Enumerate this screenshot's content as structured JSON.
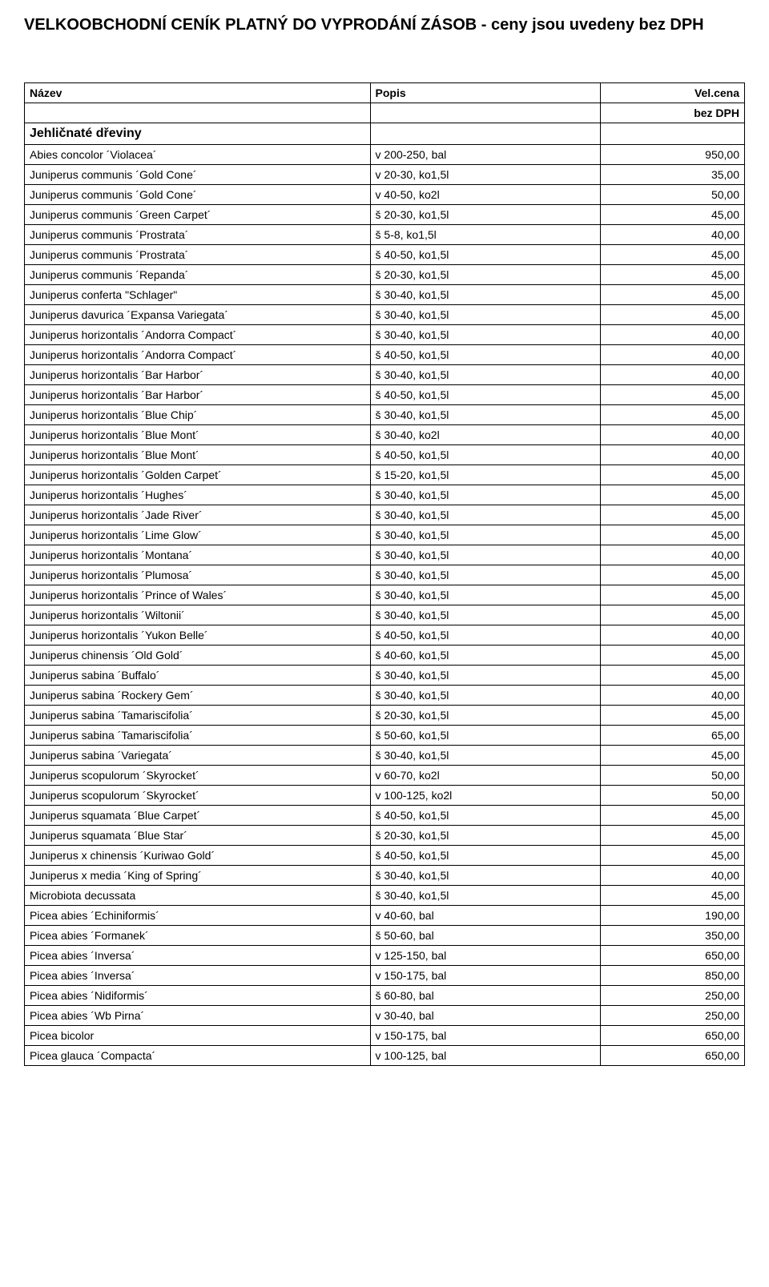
{
  "title": "VELKOOBCHODNÍ CENÍK PLATNÝ DO VYPRODÁNÍ ZÁSOB - ceny jsou uvedeny bez DPH",
  "headers": {
    "name": "Název",
    "desc": "Popis",
    "price": "Vel.cena"
  },
  "subhead": "bez DPH",
  "section": "Jehličnaté dřeviny",
  "rows": [
    {
      "name": "Abies concolor ´Violacea´",
      "desc": "v 200-250, bal",
      "price": "950,00"
    },
    {
      "name": "Juniperus communis ´Gold Cone´",
      "desc": "v 20-30, ko1,5l",
      "price": "35,00"
    },
    {
      "name": "Juniperus communis ´Gold Cone´",
      "desc": "v 40-50, ko2l",
      "price": "50,00"
    },
    {
      "name": "Juniperus communis ´Green Carpet´",
      "desc": "š 20-30, ko1,5l",
      "price": "45,00"
    },
    {
      "name": "Juniperus communis ´Prostrata´",
      "desc": "š 5-8, ko1,5l",
      "price": "40,00"
    },
    {
      "name": "Juniperus communis ´Prostrata´",
      "desc": "š 40-50, ko1,5l",
      "price": "45,00"
    },
    {
      "name": "Juniperus communis ´Repanda´",
      "desc": "š 20-30, ko1,5l",
      "price": "45,00"
    },
    {
      "name": "Juniperus conferta \"Schlager\"",
      "desc": "š 30-40, ko1,5l",
      "price": "45,00"
    },
    {
      "name": "Juniperus davurica ´Expansa Variegata´",
      "desc": "š 30-40, ko1,5l",
      "price": "45,00"
    },
    {
      "name": "Juniperus horizontalis ´Andorra Compact´",
      "desc": "š 30-40, ko1,5l",
      "price": "40,00"
    },
    {
      "name": "Juniperus horizontalis ´Andorra Compact´",
      "desc": "š 40-50, ko1,5l",
      "price": "40,00"
    },
    {
      "name": "Juniperus horizontalis ´Bar Harbor´",
      "desc": "š 30-40, ko1,5l",
      "price": "40,00"
    },
    {
      "name": "Juniperus horizontalis ´Bar Harbor´",
      "desc": "š 40-50, ko1,5l",
      "price": "45,00"
    },
    {
      "name": "Juniperus horizontalis ´Blue Chip´",
      "desc": "š 30-40, ko1,5l",
      "price": "45,00"
    },
    {
      "name": "Juniperus horizontalis ´Blue Mont´",
      "desc": "š 30-40, ko2l",
      "price": "40,00"
    },
    {
      "name": "Juniperus horizontalis ´Blue Mont´",
      "desc": "š 40-50, ko1,5l",
      "price": "40,00"
    },
    {
      "name": "Juniperus horizontalis ´Golden Carpet´",
      "desc": "š 15-20, ko1,5l",
      "price": "45,00"
    },
    {
      "name": "Juniperus horizontalis ´Hughes´",
      "desc": "š 30-40, ko1,5l",
      "price": "45,00"
    },
    {
      "name": "Juniperus horizontalis ´Jade River´",
      "desc": "š 30-40, ko1,5l",
      "price": "45,00"
    },
    {
      "name": "Juniperus horizontalis ´Lime Glow´",
      "desc": "š 30-40, ko1,5l",
      "price": "45,00"
    },
    {
      "name": "Juniperus horizontalis ´Montana´",
      "desc": "š 30-40, ko1,5l",
      "price": "40,00"
    },
    {
      "name": "Juniperus horizontalis ´Plumosa´",
      "desc": "š 30-40, ko1,5l",
      "price": "45,00"
    },
    {
      "name": "Juniperus horizontalis ´Prince of Wales´",
      "desc": "š 30-40, ko1,5l",
      "price": "45,00"
    },
    {
      "name": "Juniperus horizontalis ´Wiltonii´",
      "desc": "š 30-40, ko1,5l",
      "price": "45,00"
    },
    {
      "name": "Juniperus horizontalis ´Yukon Belle´",
      "desc": "š 40-50, ko1,5l",
      "price": "40,00"
    },
    {
      "name": "Juniperus chinensis ´Old Gold´",
      "desc": "š 40-60, ko1,5l",
      "price": "45,00"
    },
    {
      "name": "Juniperus sabina ´Buffalo´",
      "desc": "š 30-40, ko1,5l",
      "price": "45,00"
    },
    {
      "name": "Juniperus sabina ´Rockery Gem´",
      "desc": "š 30-40, ko1,5l",
      "price": "40,00"
    },
    {
      "name": "Juniperus sabina ´Tamariscifolia´",
      "desc": "š 20-30, ko1,5l",
      "price": "45,00"
    },
    {
      "name": "Juniperus sabina ´Tamariscifolia´",
      "desc": "š 50-60, ko1,5l",
      "price": "65,00"
    },
    {
      "name": "Juniperus sabina ´Variegata´",
      "desc": "š 30-40, ko1,5l",
      "price": "45,00"
    },
    {
      "name": "Juniperus scopulorum ´Skyrocket´",
      "desc": "v 60-70, ko2l",
      "price": "50,00"
    },
    {
      "name": "Juniperus scopulorum ´Skyrocket´",
      "desc": "v 100-125, ko2l",
      "price": "50,00"
    },
    {
      "name": "Juniperus squamata ´Blue Carpet´",
      "desc": "š 40-50, ko1,5l",
      "price": "45,00"
    },
    {
      "name": "Juniperus squamata ´Blue Star´",
      "desc": "š 20-30, ko1,5l",
      "price": "45,00"
    },
    {
      "name": "Juniperus x chinensis ´Kuriwao Gold´",
      "desc": "š 40-50, ko1,5l",
      "price": "45,00"
    },
    {
      "name": "Juniperus x media ´King of Spring´",
      "desc": "š 30-40, ko1,5l",
      "price": "40,00"
    },
    {
      "name": "Microbiota decussata",
      "desc": "š 30-40, ko1,5l",
      "price": "45,00"
    },
    {
      "name": "Picea abies ´Echiniformis´",
      "desc": "v 40-60, bal",
      "price": "190,00"
    },
    {
      "name": "Picea abies ´Formanek´",
      "desc": "š 50-60, bal",
      "price": "350,00"
    },
    {
      "name": "Picea abies ´Inversa´",
      "desc": "v 125-150, bal",
      "price": "650,00"
    },
    {
      "name": "Picea abies ´Inversa´",
      "desc": "v 150-175, bal",
      "price": "850,00"
    },
    {
      "name": "Picea abies ´Nidiformis´",
      "desc": "š 60-80, bal",
      "price": "250,00"
    },
    {
      "name": "Picea abies ´Wb Pirna´",
      "desc": "v 30-40, bal",
      "price": "250,00"
    },
    {
      "name": "Picea bicolor",
      "desc": "v 150-175, bal",
      "price": "650,00"
    },
    {
      "name": "Picea glauca ´Compacta´",
      "desc": "v 100-125, bal",
      "price": "650,00"
    }
  ]
}
